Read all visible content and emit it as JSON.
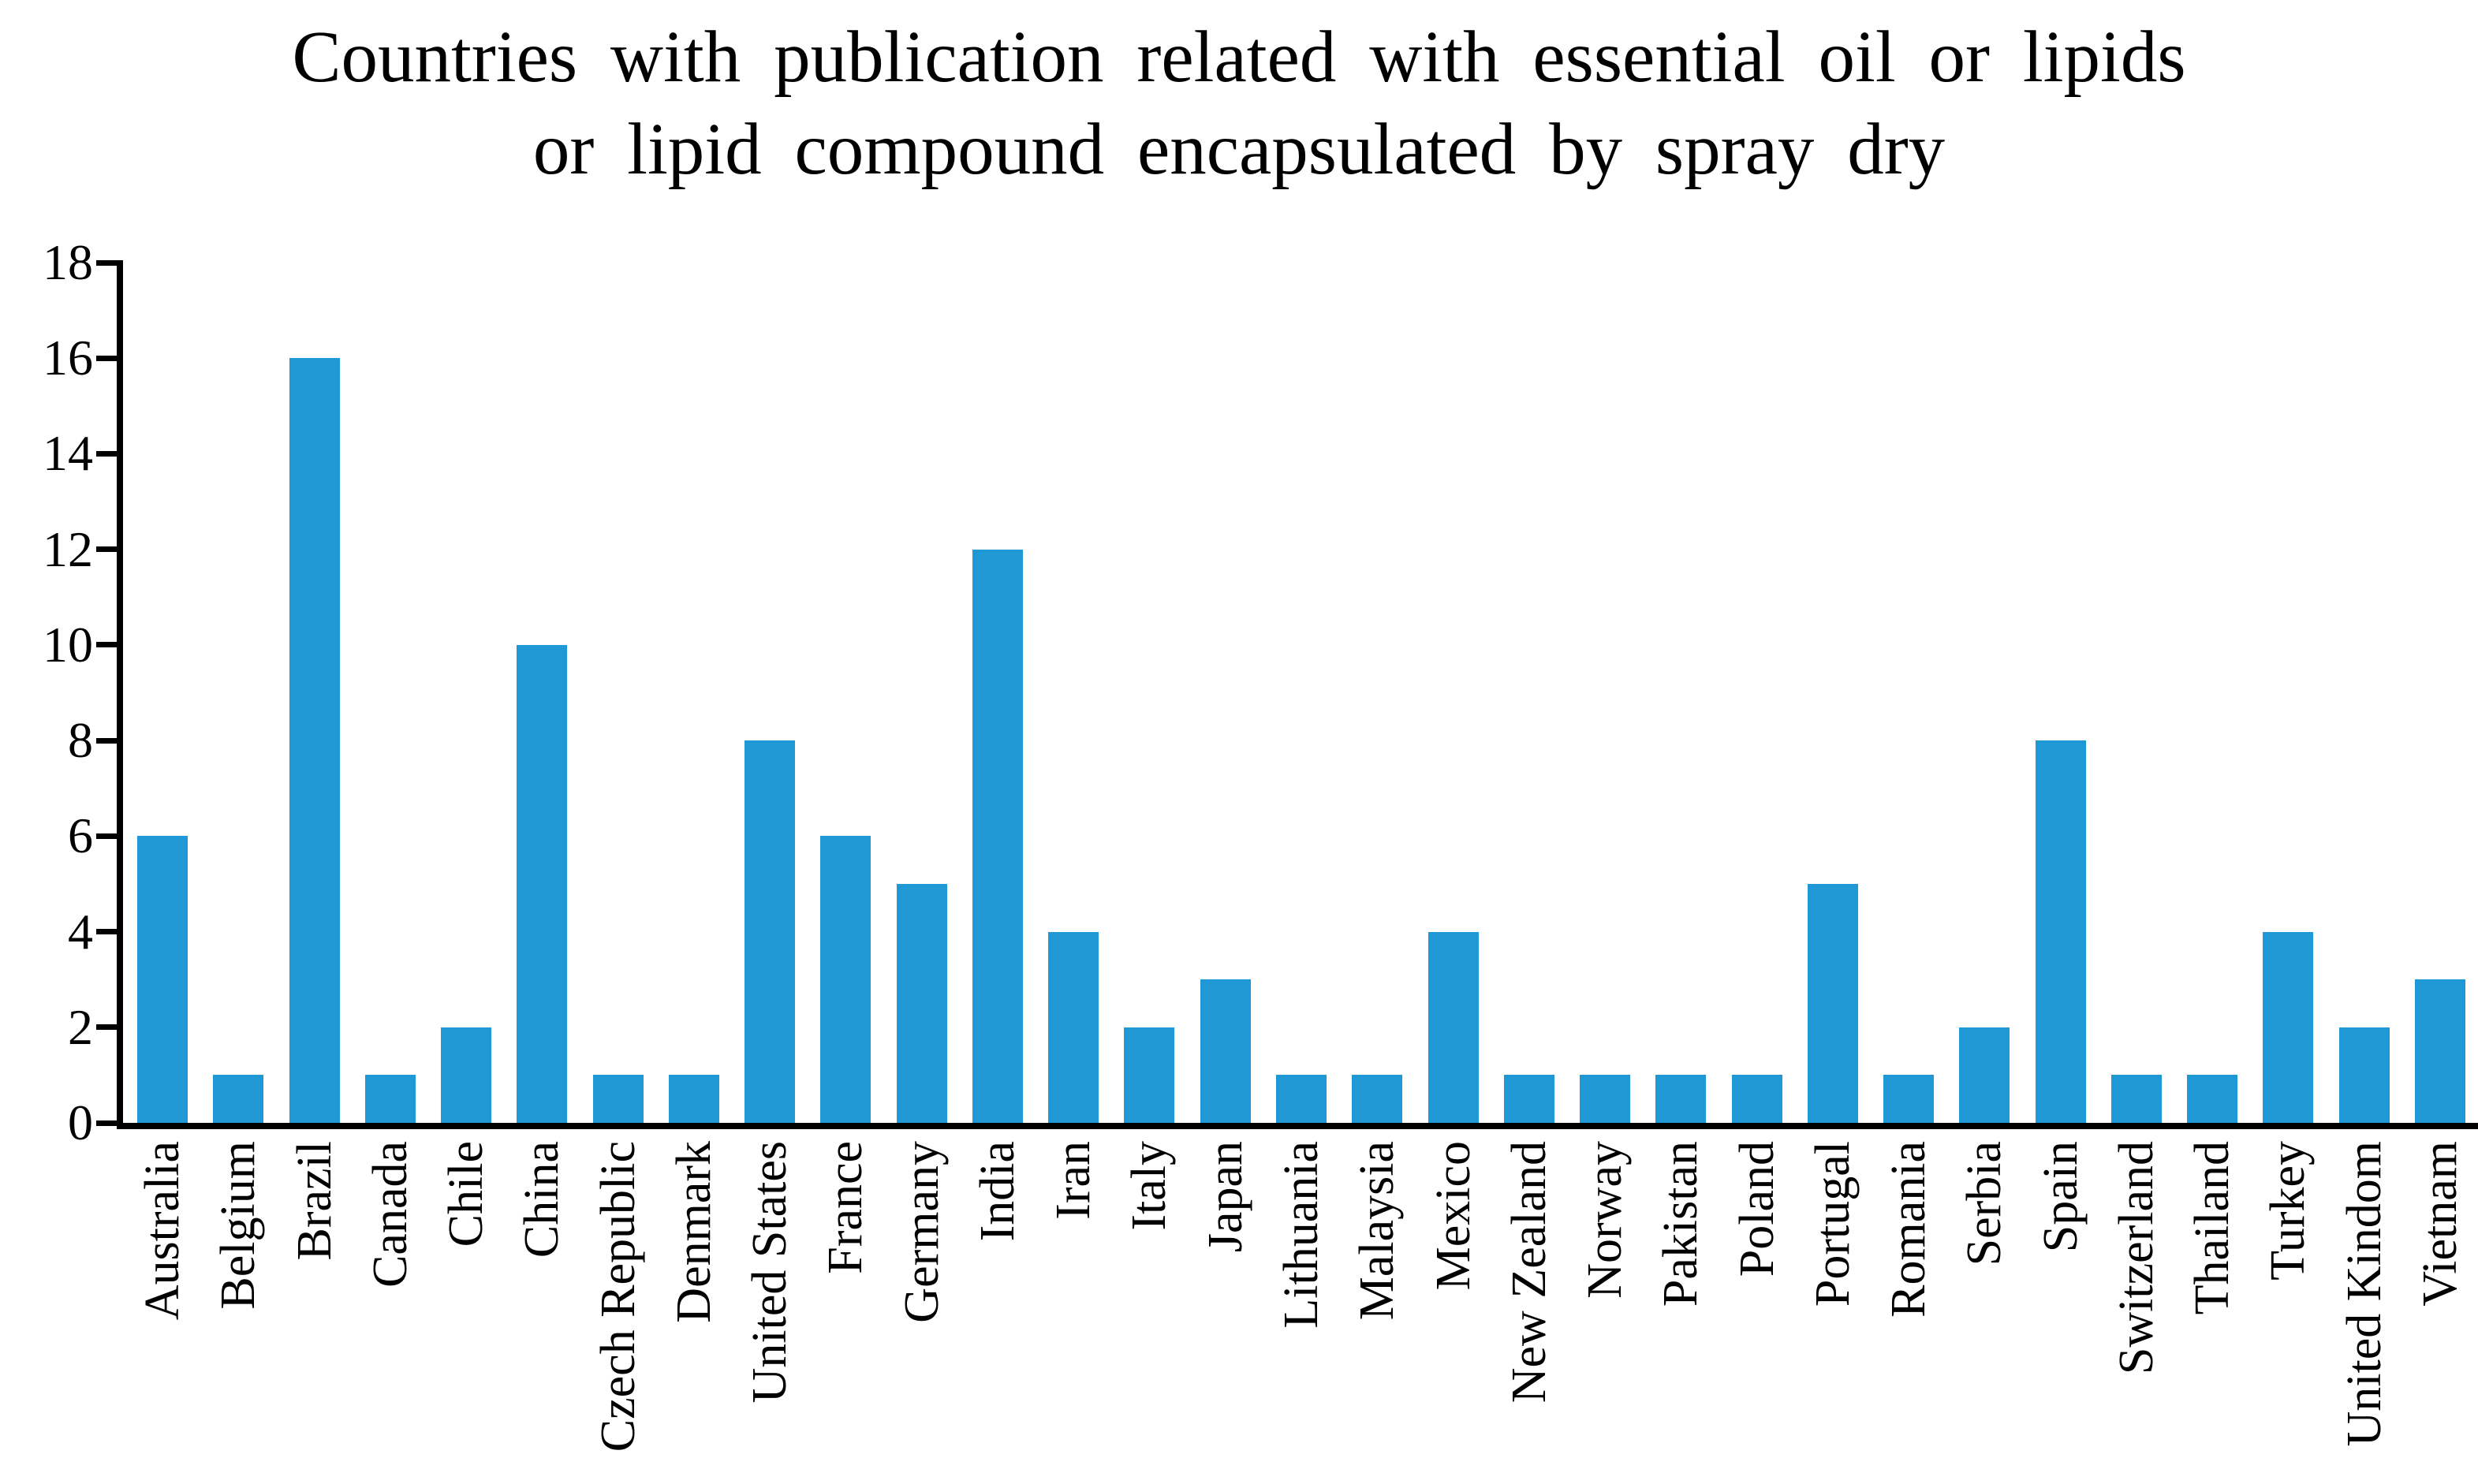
{
  "title": {
    "line1": "Countries with publication related with essential oil or lipids",
    "line2": "or lipid compound encapsulated by spray dry"
  },
  "chart_data": {
    "type": "bar",
    "title": "Countries with publication related with essential oil or lipids or lipid compound encapsulated by spray dry",
    "categories": [
      "Australia",
      "Belgium",
      "Brazil",
      "Canada",
      "Chile",
      "China",
      "Czech Republic",
      "Denmark",
      "United States",
      "France",
      "Germany",
      "India",
      "Iran",
      "Italy",
      "Japan",
      "Lithuania",
      "Malaysia",
      "Mexico",
      "New Zealand",
      "Norway",
      "Pakistan",
      "Poland",
      "Portugal",
      "Romania",
      "Serbia",
      "Spain",
      "Switzerland",
      "Thailand",
      "Turkey",
      "United Kindom",
      "Vietnam"
    ],
    "values": [
      6,
      1,
      16,
      1,
      2,
      10,
      1,
      1,
      8,
      6,
      5,
      12,
      4,
      2,
      3,
      1,
      1,
      4,
      1,
      1,
      1,
      1,
      5,
      1,
      2,
      8,
      1,
      1,
      4,
      2,
      3
    ],
    "xlabel": "",
    "ylabel": "",
    "ylim": [
      0,
      18
    ],
    "yticks": [
      0,
      2,
      4,
      6,
      8,
      10,
      12,
      14,
      16,
      18
    ],
    "grid": false,
    "legend_position": "none",
    "bar_color": "#1f98d5",
    "axis_color": "#000000",
    "text_color": "#000000"
  }
}
